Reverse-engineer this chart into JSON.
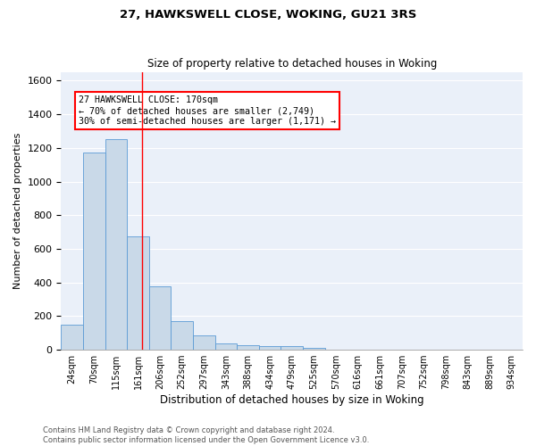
{
  "title1": "27, HAWKSWELL CLOSE, WOKING, GU21 3RS",
  "title2": "Size of property relative to detached houses in Woking",
  "xlabel": "Distribution of detached houses by size in Woking",
  "ylabel": "Number of detached properties",
  "categories": [
    "24sqm",
    "70sqm",
    "115sqm",
    "161sqm",
    "206sqm",
    "252sqm",
    "297sqm",
    "343sqm",
    "388sqm",
    "434sqm",
    "479sqm",
    "525sqm",
    "570sqm",
    "616sqm",
    "661sqm",
    "707sqm",
    "752sqm",
    "798sqm",
    "843sqm",
    "889sqm",
    "934sqm"
  ],
  "values": [
    150,
    1175,
    1255,
    675,
    375,
    170,
    85,
    35,
    25,
    20,
    20,
    10,
    0,
    0,
    0,
    0,
    0,
    0,
    0,
    0,
    0
  ],
  "bar_color": "#c9d9e8",
  "bar_edge_color": "#5b9bd5",
  "background_color": "#eaf0f9",
  "ylim": [
    0,
    1650
  ],
  "yticks": [
    0,
    200,
    400,
    600,
    800,
    1000,
    1200,
    1400,
    1600
  ],
  "red_line_x": 3.18,
  "annotation_text": "27 HAWKSWELL CLOSE: 170sqm\n← 70% of detached houses are smaller (2,749)\n30% of semi-detached houses are larger (1,171) →",
  "footer_line1": "Contains HM Land Registry data © Crown copyright and database right 2024.",
  "footer_line2": "Contains public sector information licensed under the Open Government Licence v3.0."
}
